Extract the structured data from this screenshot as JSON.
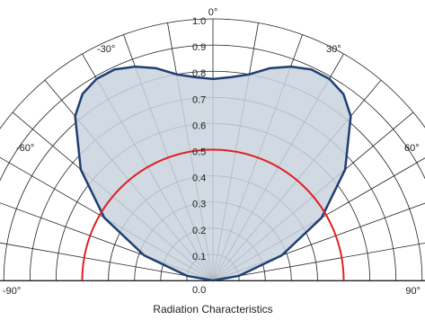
{
  "chart_data": {
    "type": "polar-radiation",
    "title": "Radiation Characteristics",
    "angle_range": [
      -90,
      90
    ],
    "radial_range": [
      0,
      1.0
    ],
    "radial_ticks": [
      "0.1",
      "0.2",
      "0.3",
      "0.4",
      "0.5",
      "0.6",
      "0.7",
      "0.8",
      "0.9",
      "1.0"
    ],
    "angle_tick_labels": [
      {
        "angle": -90,
        "label": "-90°"
      },
      {
        "angle": -60,
        "label": "-60°"
      },
      {
        "angle": -30,
        "label": "-30°"
      },
      {
        "angle": 0,
        "label": "0°"
      },
      {
        "angle": 30,
        "label": "30°"
      },
      {
        "angle": 60,
        "label": "60°"
      },
      {
        "angle": 90,
        "label": "90°"
      }
    ],
    "baseline_label": "0.0",
    "grid_angle_step": 10,
    "series": [
      {
        "color": "#1f3f73",
        "fill": "#c9d2de",
        "points": [
          [
            -90,
            0.0
          ],
          [
            -80,
            0.1
          ],
          [
            -70,
            0.28
          ],
          [
            -60,
            0.48
          ],
          [
            -50,
            0.66
          ],
          [
            -40,
            0.82
          ],
          [
            -35,
            0.87
          ],
          [
            -30,
            0.89
          ],
          [
            -25,
            0.89
          ],
          [
            -20,
            0.87
          ],
          [
            -15,
            0.84
          ],
          [
            -10,
            0.8
          ],
          [
            -5,
            0.78
          ],
          [
            0,
            0.77
          ],
          [
            5,
            0.78
          ],
          [
            10,
            0.8
          ],
          [
            15,
            0.84
          ],
          [
            20,
            0.87
          ],
          [
            25,
            0.89
          ],
          [
            30,
            0.89
          ],
          [
            35,
            0.87
          ],
          [
            40,
            0.82
          ],
          [
            50,
            0.66
          ],
          [
            60,
            0.48
          ],
          [
            70,
            0.28
          ],
          [
            80,
            0.1
          ],
          [
            90,
            0.0
          ]
        ]
      },
      {
        "color": "#e02020",
        "fill": "none",
        "points": [
          [
            -90,
            0.5
          ],
          [
            -60,
            0.5
          ],
          [
            -30,
            0.5
          ],
          [
            0,
            0.5
          ],
          [
            30,
            0.5
          ],
          [
            60,
            0.5
          ],
          [
            90,
            0.5
          ]
        ]
      }
    ]
  }
}
